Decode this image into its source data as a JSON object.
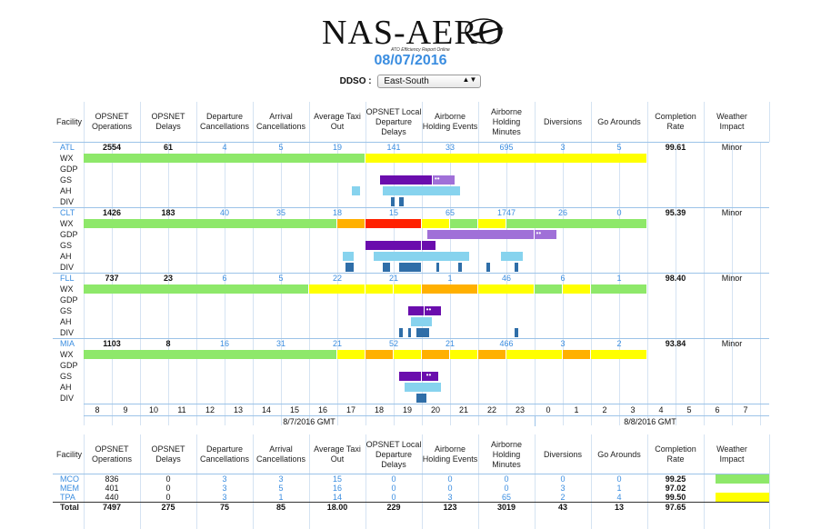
{
  "logo": {
    "text": "NAS-AERO",
    "subtitle": "ATO Efficiency Report Online"
  },
  "date": "08/07/2016",
  "ddso": {
    "label": "DDSO :",
    "selected": "East-South"
  },
  "columns": [
    "Facility",
    "OPSNET Operations",
    "OPSNET Delays",
    "Departure Cancellations",
    "Arrival Cancellations",
    "Average Taxi Out",
    "OPSNET Local Departure Delays",
    "Airborne Holding Events",
    "Airborne Holding Minutes",
    "Diversions",
    "Go Arounds",
    "Completion Rate",
    "Weather Impact"
  ],
  "sub_rows": [
    "WX",
    "GDP",
    "GS",
    "AH",
    "DIV"
  ],
  "facilities": [
    {
      "name": "ATL",
      "values": [
        "2554",
        "61",
        "4",
        "5",
        "19",
        "141",
        "33",
        "695",
        "3",
        "5",
        "99.61",
        "Minor"
      ]
    },
    {
      "name": "CLT",
      "values": [
        "1426",
        "183",
        "40",
        "35",
        "18",
        "15",
        "65",
        "1747",
        "26",
        "0",
        "95.39",
        "Minor"
      ]
    },
    {
      "name": "FLL",
      "values": [
        "737",
        "23",
        "6",
        "5",
        "22",
        "21",
        "1",
        "46",
        "6",
        "1",
        "98.40",
        "Minor"
      ]
    },
    {
      "name": "MIA",
      "values": [
        "1103",
        "8",
        "16",
        "31",
        "21",
        "52",
        "21",
        "466",
        "3",
        "2",
        "93.84",
        "Minor"
      ]
    }
  ],
  "hours": [
    "8",
    "9",
    "10",
    "11",
    "12",
    "13",
    "14",
    "15",
    "16",
    "17",
    "18",
    "19",
    "20",
    "21",
    "22",
    "23",
    "0",
    "1",
    "2",
    "3",
    "4",
    "5",
    "6",
    "7"
  ],
  "gmt_labels": [
    "8/7/2016 GMT",
    "8/8/2016 GMT"
  ],
  "bottom_rows": [
    {
      "name": "MCO",
      "values": [
        "836",
        "0",
        "3",
        "3",
        "15",
        "0",
        "0",
        "0",
        "0",
        "0",
        "99.25"
      ],
      "wx_color": "#8ee86a"
    },
    {
      "name": "MEM",
      "values": [
        "401",
        "0",
        "3",
        "5",
        "16",
        "0",
        "0",
        "0",
        "3",
        "1",
        "97.02"
      ],
      "wx_color": ""
    },
    {
      "name": "TPA",
      "values": [
        "440",
        "0",
        "3",
        "1",
        "14",
        "0",
        "3",
        "65",
        "2",
        "4",
        "99.50"
      ],
      "wx_color": "#ffff00"
    }
  ],
  "total": {
    "label": "Total",
    "values": [
      "7497",
      "275",
      "75",
      "85",
      "18.00",
      "229",
      "123",
      "3019",
      "43",
      "13",
      "97.65"
    ]
  },
  "colors": {
    "green": "#8ee86a",
    "yellow": "#ffff00",
    "orange": "#ffb000",
    "red": "#ff2000",
    "purple": "#6a0dad",
    "lightpurple": "#a070d8",
    "lightblue": "#87d3ee",
    "darkblue": "#2f6ea8",
    "accent": "#3a8de0"
  }
}
